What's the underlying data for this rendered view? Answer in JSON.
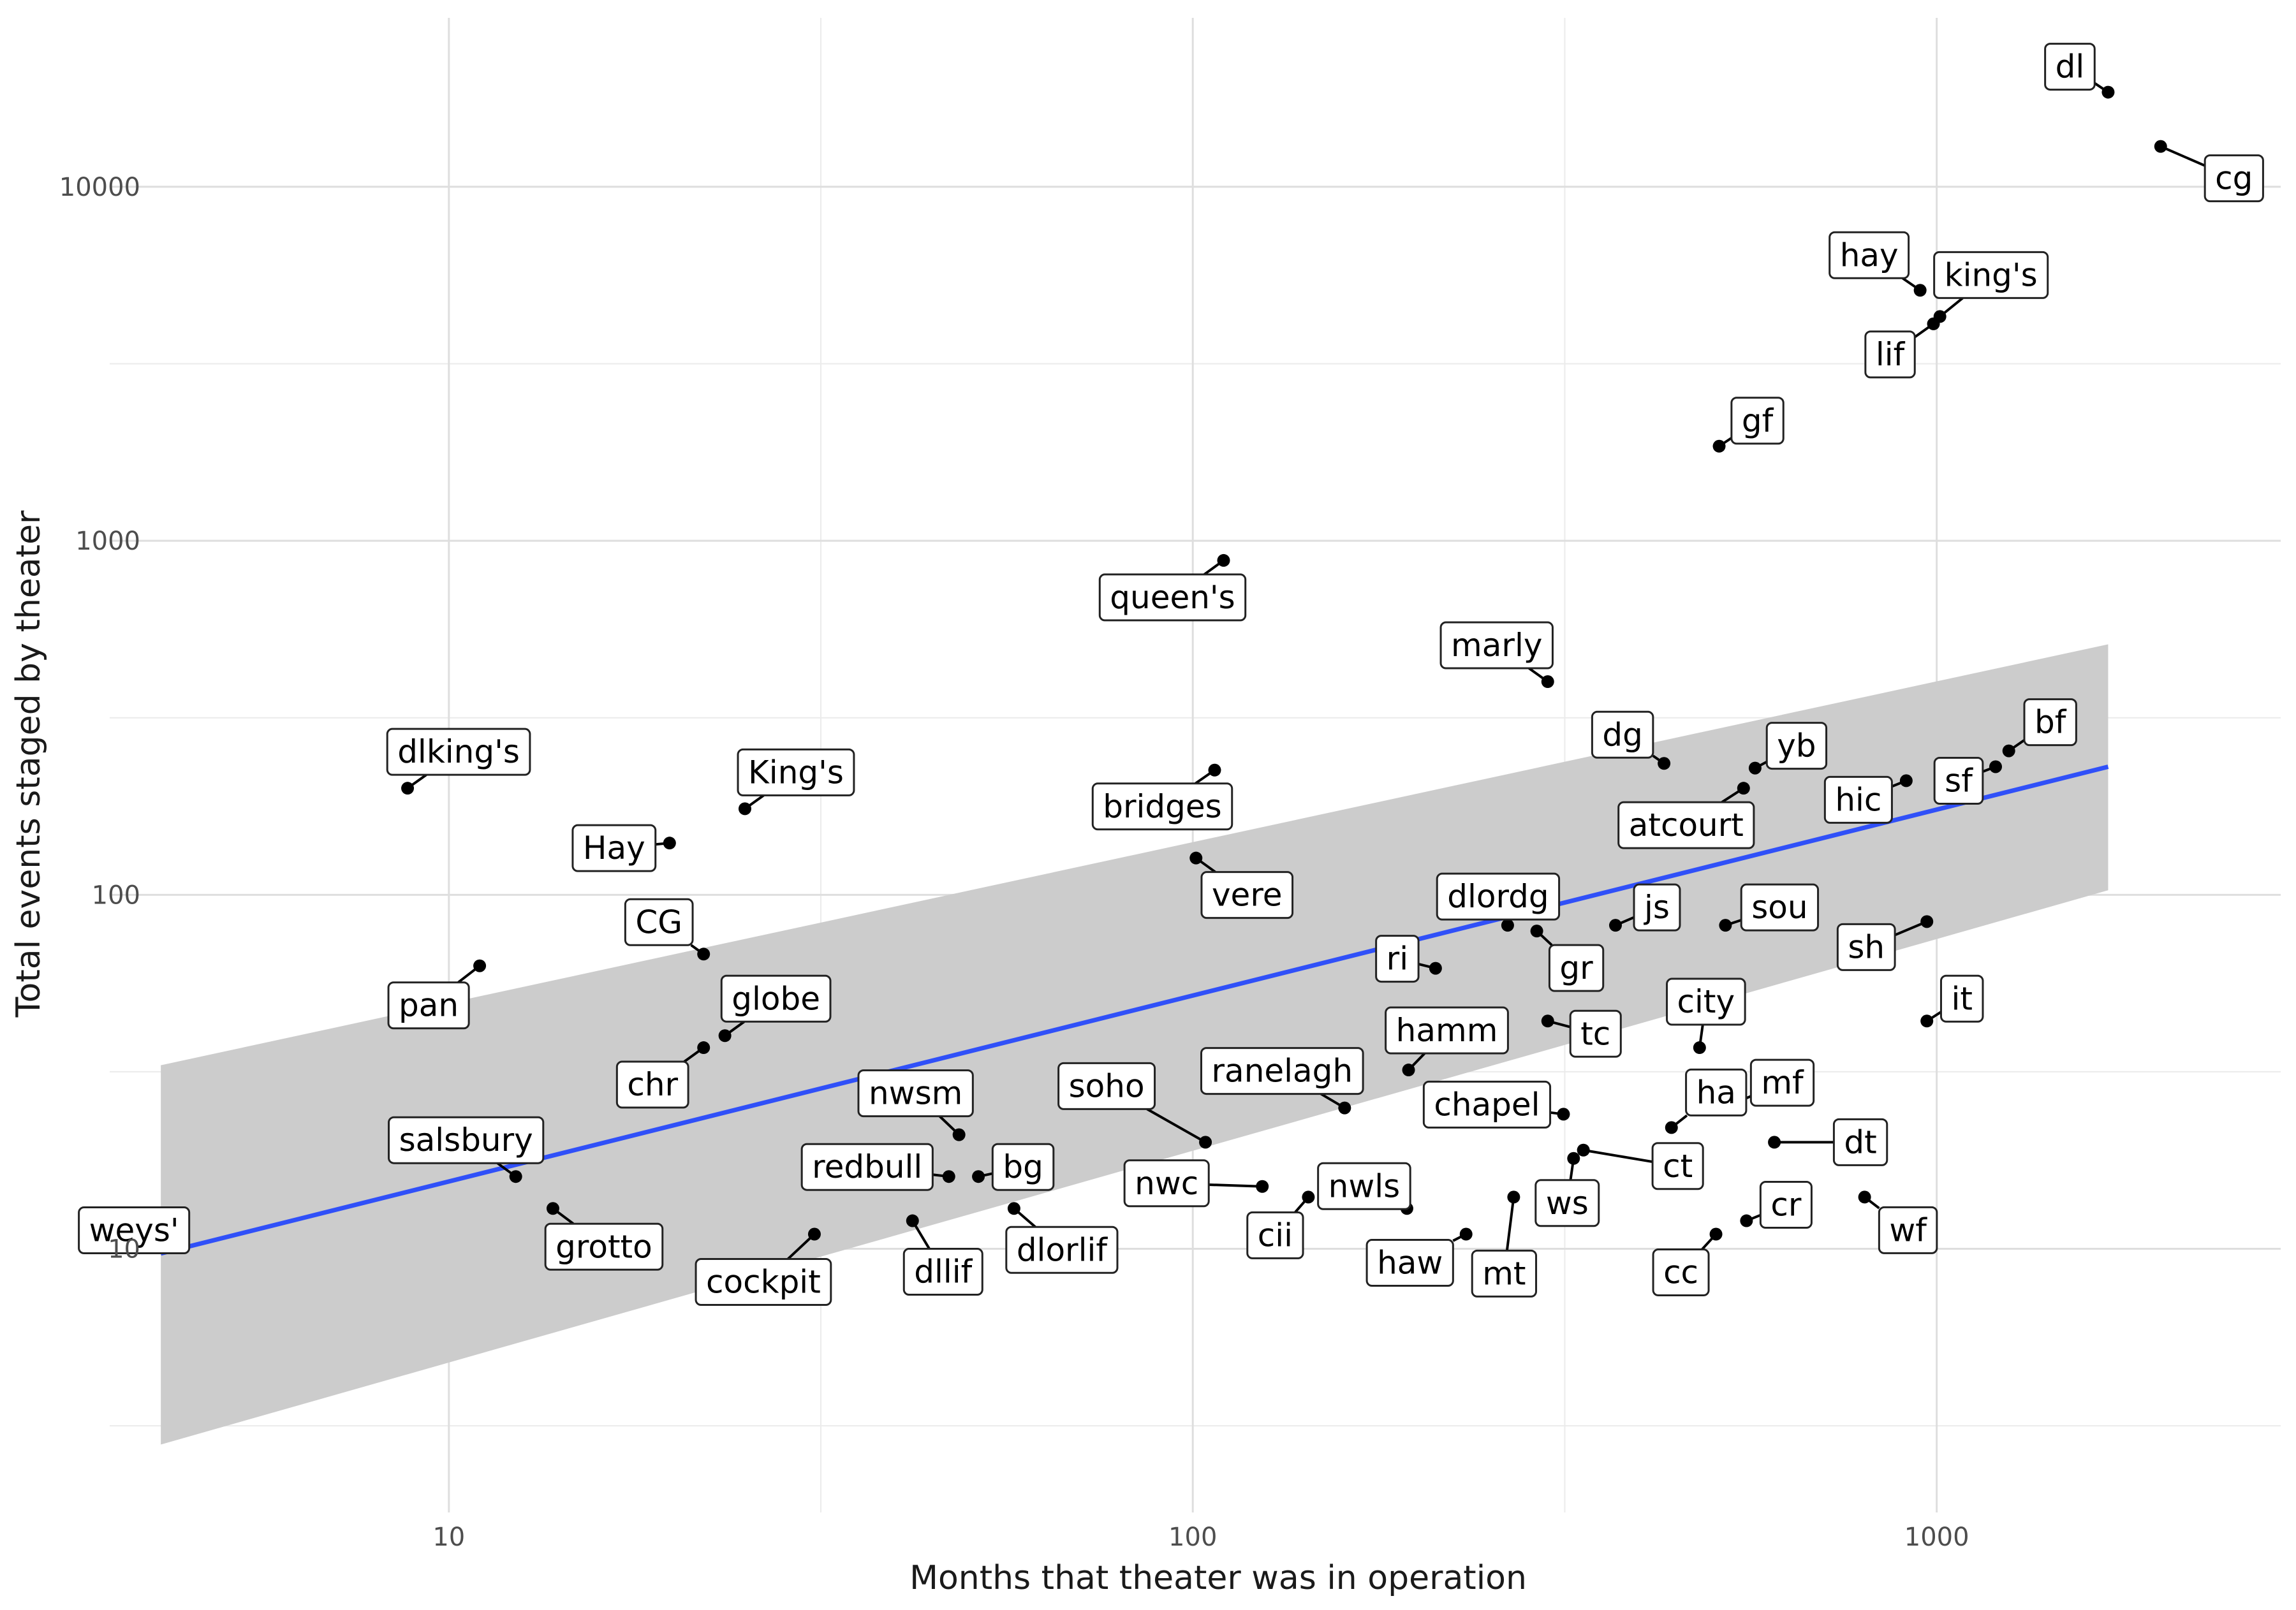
{
  "chart_data": {
    "type": "scatter",
    "title": "",
    "xlabel": "Months that theater was in operation",
    "ylabel": "Total events staged by theater",
    "x_scale": "log10",
    "y_scale": "log10",
    "xlim": [
      3.5,
      2900
    ],
    "ylim": [
      1.8,
      30000
    ],
    "x_ticks": [
      10,
      100,
      1000
    ],
    "x_tick_labels": [
      "10",
      "100",
      "1000"
    ],
    "y_ticks": [
      10,
      100,
      1000,
      10000
    ],
    "y_tick_labels": [
      "10",
      "100",
      "1000",
      "10000"
    ],
    "grid": true,
    "legend": "none",
    "point_color": "#000000",
    "trend_line_color": "#3050f8",
    "ribbon_color": "#cccccc",
    "trend_line": {
      "method": "linear fit on log-log scale",
      "x": [
        4.1,
        1700
      ],
      "y": [
        9.7,
        230
      ],
      "lower": [
        2.8,
        103
      ],
      "upper": [
        33,
        510
      ]
    },
    "points": [
      {
        "label": "dl",
        "x": 1700,
        "y": 18500
      },
      {
        "label": "cg",
        "x": 2000,
        "y": 13000
      },
      {
        "label": "hay",
        "x": 950,
        "y": 5100
      },
      {
        "label": "king's",
        "x": 1010,
        "y": 4300
      },
      {
        "label": "lif",
        "x": 990,
        "y": 4100
      },
      {
        "label": "gf",
        "x": 510,
        "y": 1850
      },
      {
        "label": "queen's",
        "x": 110,
        "y": 880
      },
      {
        "label": "marly",
        "x": 300,
        "y": 400
      },
      {
        "label": "dg",
        "x": 430,
        "y": 235
      },
      {
        "label": "yb",
        "x": 570,
        "y": 228
      },
      {
        "label": "bf",
        "x": 1250,
        "y": 255
      },
      {
        "label": "sf",
        "x": 1200,
        "y": 230
      },
      {
        "label": "hic",
        "x": 910,
        "y": 210
      },
      {
        "label": "atcourt",
        "x": 550,
        "y": 200
      },
      {
        "label": "dlking's",
        "x": 8.8,
        "y": 200
      },
      {
        "label": "King's",
        "x": 25,
        "y": 175
      },
      {
        "label": "Hay",
        "x": 19.8,
        "y": 140
      },
      {
        "label": "bridges",
        "x": 107,
        "y": 225
      },
      {
        "label": "vere",
        "x": 101,
        "y": 127
      },
      {
        "label": "dlordg",
        "x": 265,
        "y": 82
      },
      {
        "label": "gr",
        "x": 290,
        "y": 79
      },
      {
        "label": "js",
        "x": 370,
        "y": 82
      },
      {
        "label": "sou",
        "x": 520,
        "y": 82
      },
      {
        "label": "sh",
        "x": 970,
        "y": 84
      },
      {
        "label": "ri",
        "x": 212,
        "y": 62
      },
      {
        "label": "pan",
        "x": 11,
        "y": 63
      },
      {
        "label": "CG",
        "x": 22,
        "y": 68
      },
      {
        "label": "globe",
        "x": 23.5,
        "y": 40
      },
      {
        "label": "chr",
        "x": 22,
        "y": 37
      },
      {
        "label": "it",
        "x": 970,
        "y": 44
      },
      {
        "label": "tc",
        "x": 300,
        "y": 44
      },
      {
        "label": "city",
        "x": 480,
        "y": 37
      },
      {
        "label": "hamm",
        "x": 195,
        "y": 32
      },
      {
        "label": "ranelagh",
        "x": 160,
        "y": 25
      },
      {
        "label": "chapel",
        "x": 315,
        "y": 24
      },
      {
        "label": "mf",
        "x": 540,
        "y": 26
      },
      {
        "label": "ha",
        "x": 440,
        "y": 22
      },
      {
        "label": "nwsm",
        "x": 48.5,
        "y": 21
      },
      {
        "label": "soho",
        "x": 104,
        "y": 20
      },
      {
        "label": "dt",
        "x": 605,
        "y": 20
      },
      {
        "label": "salsbury",
        "x": 12.3,
        "y": 16
      },
      {
        "label": "ct",
        "x": 335,
        "y": 19
      },
      {
        "label": "ws",
        "x": 325,
        "y": 18
      },
      {
        "label": "redbull",
        "x": 47,
        "y": 16
      },
      {
        "label": "bg",
        "x": 51.5,
        "y": 16
      },
      {
        "label": "nwc",
        "x": 124,
        "y": 15
      },
      {
        "label": "cii",
        "x": 143,
        "y": 14
      },
      {
        "label": "wf",
        "x": 800,
        "y": 14
      },
      {
        "label": "grotto",
        "x": 13.8,
        "y": 13
      },
      {
        "label": "dlorlif",
        "x": 57.5,
        "y": 13
      },
      {
        "label": "nwls",
        "x": 194,
        "y": 13
      },
      {
        "label": "mt",
        "x": 270,
        "y": 14
      },
      {
        "label": "cr",
        "x": 555,
        "y": 12
      },
      {
        "label": "weys'",
        "x": 4.1,
        "y": 12
      },
      {
        "label": "dllif",
        "x": 42,
        "y": 12
      },
      {
        "label": "cockpit",
        "x": 31,
        "y": 11
      },
      {
        "label": "haw",
        "x": 233,
        "y": 11
      },
      {
        "label": "cc",
        "x": 505,
        "y": 11
      }
    ]
  }
}
